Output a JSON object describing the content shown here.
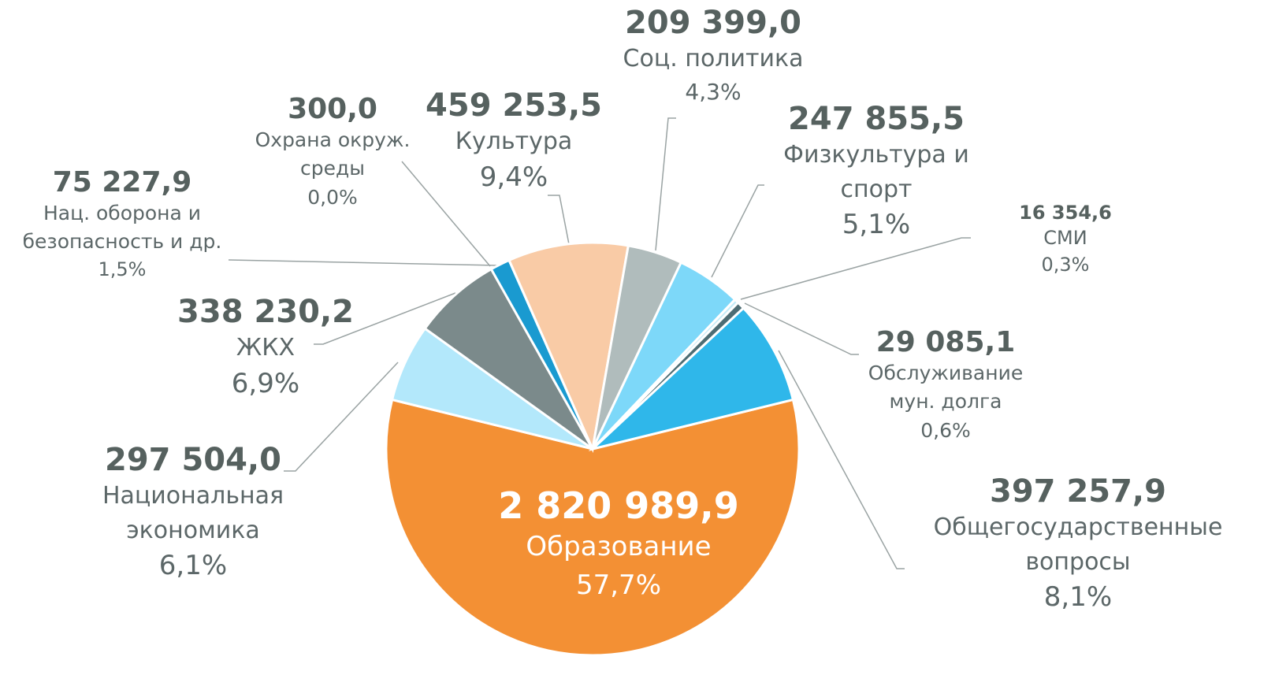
{
  "chart_data": {
    "type": "pie",
    "categories": [
      "Образование",
      "Национальная\nэкономика",
      "ЖКХ",
      "Нац. оборона и\nбезопасность и др.",
      "Охрана окруж.\nсреды",
      "Культура",
      "Соц. политика",
      "Физкультура и\nспорт",
      "СМИ",
      "Обслуживание\nмун. долга",
      "Общегосударственные\nвопросы"
    ],
    "values": [
      2820989.9,
      297504.0,
      338230.2,
      75227.9,
      300.0,
      459253.5,
      209399.0,
      247855.5,
      16354.6,
      29085.1,
      397257.9
    ],
    "value_labels": [
      "2 820 989,9",
      "297 504,0",
      "338 230,2",
      "75 227,9",
      "300,0",
      "459 253,5",
      "209 399,0",
      "247 855,5",
      "16 354,6",
      "29 085,1",
      "397 257,9"
    ],
    "percents": [
      57.7,
      6.1,
      6.9,
      1.5,
      0.0,
      9.4,
      4.3,
      5.1,
      0.3,
      0.6,
      8.1
    ],
    "percent_labels": [
      "57,7%",
      "6,1%",
      "6,9%",
      "1,5%",
      "0,0%",
      "9,4%",
      "4,3%",
      "5,1%",
      "0,3%",
      "0,6%",
      "8,1%"
    ],
    "colors": [
      "#f39034",
      "#b3e8fb",
      "#7b8a8b",
      "#1a9ad0",
      "#1a9ad0",
      "#f9cba6",
      "#b0bcbc",
      "#7dd8f9",
      "#c6ecf8",
      "#4d6d74",
      "#2fb7ea"
    ]
  }
}
